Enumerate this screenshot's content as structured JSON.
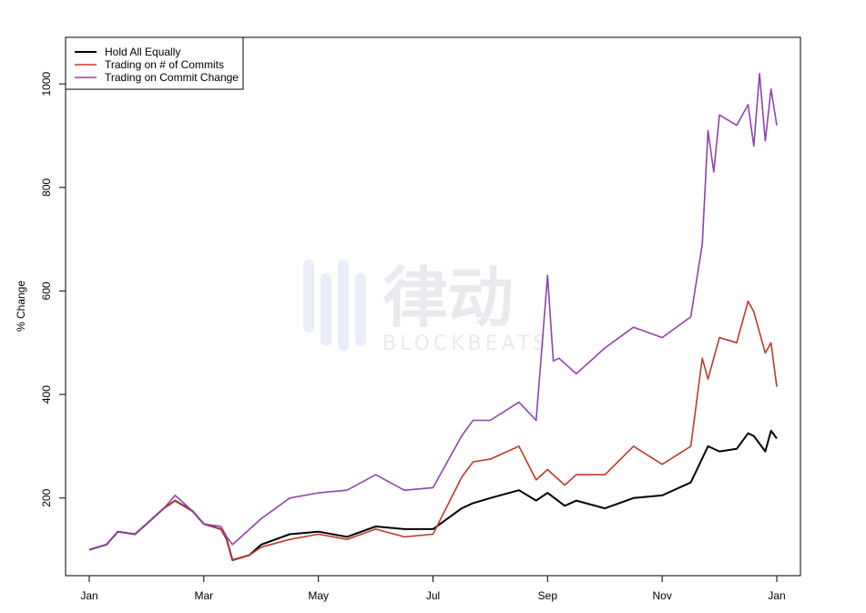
{
  "chart_data": {
    "type": "line",
    "title": "",
    "xlabel": "",
    "ylabel": "% Change",
    "x_ticks": [
      "Jan",
      "Mar",
      "May",
      "Jul",
      "Sep",
      "Nov",
      "Jan"
    ],
    "y_ticks": [
      200,
      400,
      600,
      800,
      1000
    ],
    "xlim": [
      0,
      12
    ],
    "ylim": [
      50,
      1090
    ],
    "grid": false,
    "legend_position": "top-left",
    "x_unit": "months since start (Jan = 0, following Jan = 12)",
    "series": [
      {
        "name": "Hold All Equally",
        "color": "#000000",
        "x": [
          0,
          0.3,
          0.5,
          0.8,
          1.0,
          1.3,
          1.5,
          1.8,
          2.0,
          2.3,
          2.4,
          2.5,
          2.8,
          3.0,
          3.5,
          4.0,
          4.5,
          5.0,
          5.5,
          6.0,
          6.5,
          6.7,
          7.0,
          7.5,
          7.8,
          8.0,
          8.3,
          8.5,
          9.0,
          9.5,
          10.0,
          10.5,
          10.8,
          11.0,
          11.3,
          11.5,
          11.6,
          11.8,
          11.9,
          12.0
        ],
        "values": [
          100,
          110,
          135,
          130,
          150,
          180,
          195,
          175,
          150,
          140,
          120,
          80,
          90,
          110,
          130,
          135,
          125,
          145,
          140,
          140,
          180,
          190,
          200,
          215,
          195,
          210,
          185,
          195,
          180,
          200,
          205,
          230,
          300,
          290,
          295,
          325,
          320,
          290,
          330,
          315
        ]
      },
      {
        "name": "Trading on # of Commits",
        "color": "#c0392b",
        "x": [
          0,
          0.3,
          0.5,
          0.8,
          1.0,
          1.3,
          1.5,
          1.8,
          2.0,
          2.3,
          2.4,
          2.5,
          2.8,
          3.0,
          3.5,
          4.0,
          4.5,
          5.0,
          5.5,
          6.0,
          6.5,
          6.7,
          7.0,
          7.5,
          7.8,
          8.0,
          8.3,
          8.5,
          9.0,
          9.5,
          10.0,
          10.5,
          10.7,
          10.8,
          11.0,
          11.3,
          11.5,
          11.6,
          11.8,
          11.9,
          12.0
        ],
        "values": [
          100,
          110,
          135,
          130,
          150,
          180,
          195,
          175,
          150,
          140,
          120,
          80,
          90,
          105,
          120,
          130,
          120,
          140,
          125,
          130,
          240,
          270,
          275,
          300,
          235,
          255,
          225,
          245,
          245,
          300,
          265,
          300,
          470,
          430,
          510,
          500,
          580,
          560,
          480,
          500,
          415
        ]
      },
      {
        "name": "Trading on Commit Change",
        "color": "#8e44ad",
        "x": [
          0,
          0.3,
          0.5,
          0.8,
          1.0,
          1.3,
          1.5,
          1.8,
          2.0,
          2.3,
          2.4,
          2.5,
          2.8,
          3.0,
          3.5,
          4.0,
          4.5,
          5.0,
          5.5,
          6.0,
          6.5,
          6.7,
          7.0,
          7.5,
          7.8,
          8.0,
          8.1,
          8.2,
          8.5,
          9.0,
          9.5,
          10.0,
          10.5,
          10.7,
          10.8,
          10.9,
          11.0,
          11.3,
          11.5,
          11.6,
          11.7,
          11.8,
          11.9,
          12.0
        ],
        "values": [
          100,
          110,
          135,
          130,
          150,
          180,
          205,
          175,
          150,
          145,
          125,
          110,
          140,
          160,
          200,
          210,
          215,
          245,
          215,
          220,
          320,
          350,
          350,
          385,
          350,
          630,
          465,
          470,
          440,
          490,
          530,
          510,
          550,
          690,
          910,
          830,
          940,
          920,
          960,
          880,
          1020,
          890,
          990,
          920
        ]
      }
    ]
  },
  "watermark": {
    "main_text": "律动",
    "sub_text": "BLOCKBEATS"
  }
}
